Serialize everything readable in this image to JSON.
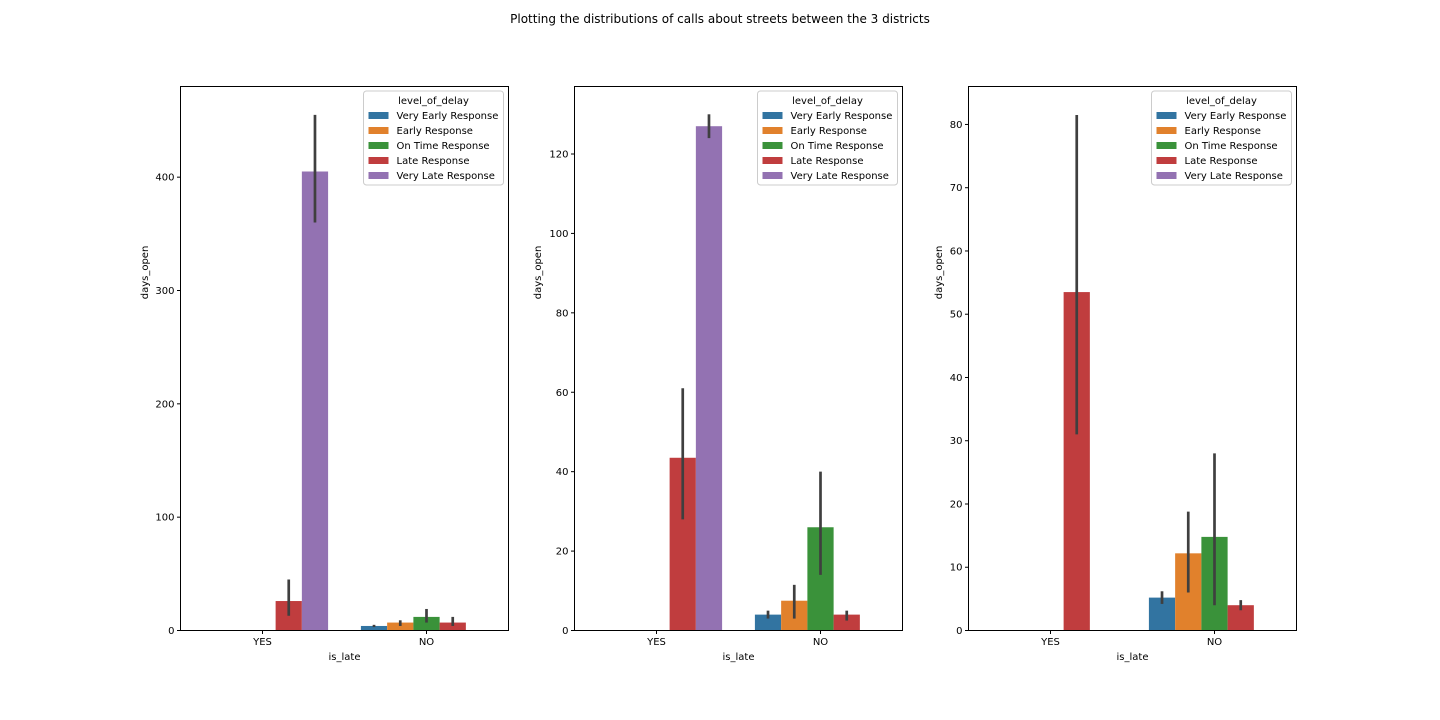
{
  "figure": {
    "title": "Plotting the distributions of calls about streets between the 3 districts"
  },
  "legend": {
    "title": "level_of_delay",
    "placement": "top-right",
    "entries": [
      {
        "name": "Very Early Response",
        "color": "#3274a1"
      },
      {
        "name": "Early Response",
        "color": "#e1812c"
      },
      {
        "name": "On Time Response",
        "color": "#3a923a"
      },
      {
        "name": "Late Response",
        "color": "#c03d3e"
      },
      {
        "name": "Very Late Response",
        "color": "#9372b2"
      }
    ]
  },
  "chart_data": [
    {
      "type": "bar",
      "xlabel": "is_late",
      "ylabel": "days_open",
      "categories": [
        "YES",
        "NO"
      ],
      "ylim": [
        0,
        480
      ],
      "yticks": [
        0,
        100,
        200,
        300,
        400
      ],
      "grid": false,
      "series": [
        {
          "name": "Very Early Response",
          "values": [
            null,
            4
          ],
          "ci": [
            null,
            [
              3,
              5
            ]
          ]
        },
        {
          "name": "Early Response",
          "values": [
            null,
            7
          ],
          "ci": [
            null,
            [
              4,
              9
            ]
          ]
        },
        {
          "name": "On Time Response",
          "values": [
            null,
            12
          ],
          "ci": [
            null,
            [
              7,
              19
            ]
          ]
        },
        {
          "name": "Late Response",
          "values": [
            26,
            7
          ],
          "ci": [
            [
              13,
              45
            ],
            [
              4,
              12
            ]
          ]
        },
        {
          "name": "Very Late Response",
          "values": [
            405,
            null
          ],
          "ci": [
            [
              360,
              455
            ],
            null
          ]
        }
      ]
    },
    {
      "type": "bar",
      "xlabel": "is_late",
      "ylabel": "days_open",
      "categories": [
        "YES",
        "NO"
      ],
      "ylim": [
        0,
        137
      ],
      "yticks": [
        0,
        20,
        40,
        60,
        80,
        100,
        120
      ],
      "grid": false,
      "series": [
        {
          "name": "Very Early Response",
          "values": [
            null,
            4
          ],
          "ci": [
            null,
            [
              3,
              5
            ]
          ]
        },
        {
          "name": "Early Response",
          "values": [
            null,
            7.5
          ],
          "ci": [
            null,
            [
              3,
              11.5
            ]
          ]
        },
        {
          "name": "On Time Response",
          "values": [
            null,
            26
          ],
          "ci": [
            null,
            [
              14,
              40
            ]
          ]
        },
        {
          "name": "Late Response",
          "values": [
            43.5,
            4
          ],
          "ci": [
            [
              28,
              61
            ],
            [
              2.5,
              5
            ]
          ]
        },
        {
          "name": "Very Late Response",
          "values": [
            127,
            null
          ],
          "ci": [
            [
              124,
              130
            ],
            null
          ]
        }
      ]
    },
    {
      "type": "bar",
      "xlabel": "is_late",
      "ylabel": "days_open",
      "categories": [
        "YES",
        "NO"
      ],
      "ylim": [
        0,
        86
      ],
      "yticks": [
        0,
        10,
        20,
        30,
        40,
        50,
        60,
        70,
        80
      ],
      "grid": false,
      "series": [
        {
          "name": "Very Early Response",
          "values": [
            null,
            5.2
          ],
          "ci": [
            null,
            [
              4.2,
              6.2
            ]
          ]
        },
        {
          "name": "Early Response",
          "values": [
            null,
            12.2
          ],
          "ci": [
            null,
            [
              6,
              18.8
            ]
          ]
        },
        {
          "name": "On Time Response",
          "values": [
            null,
            14.8
          ],
          "ci": [
            null,
            [
              4,
              28
            ]
          ]
        },
        {
          "name": "Late Response",
          "values": [
            53.5,
            4
          ],
          "ci": [
            [
              31,
              81.5
            ],
            [
              3.2,
              4.8
            ]
          ]
        },
        {
          "name": "Very Late Response",
          "values": [
            null,
            null
          ],
          "ci": [
            null,
            null
          ]
        }
      ]
    }
  ]
}
